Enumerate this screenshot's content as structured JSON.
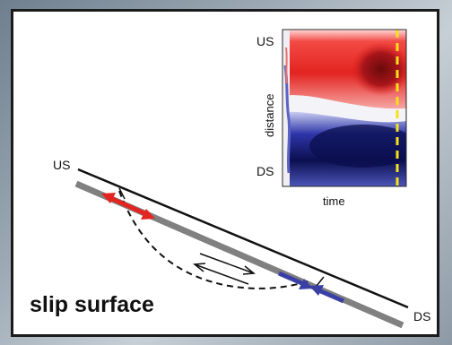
{
  "inset": {
    "top_label": "US",
    "bottom_label": "DS",
    "y_axis_label": "distance",
    "x_axis_label": "time"
  },
  "diagram": {
    "upper_left_label": "US",
    "lower_right_label": "DS",
    "caption": "slip surface"
  },
  "colors": {
    "red": "#e32420",
    "blue": "#3a3fa6",
    "dark_blue": "#0b0f4f",
    "dark_red": "#7a0d0d",
    "surface": "#808080",
    "marker": "#f5e11a"
  }
}
